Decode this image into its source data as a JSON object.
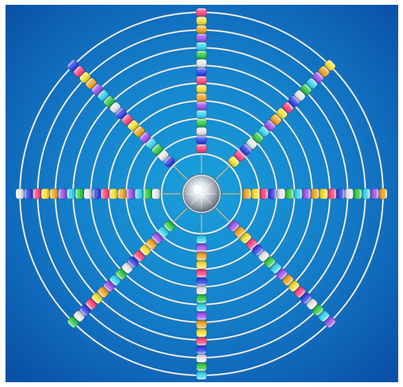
{
  "image": {
    "subject": "",
    "background": {
      "inner_color": "#19a2dc",
      "outer_color": "#0a4fa8"
    },
    "ring_count": 9,
    "spoke_count": 8,
    "ring_color": "#e8eef4",
    "wire_color": "#c9b48a",
    "center_gem_color": "#dfe4ea",
    "bead_palette": [
      "#ff3f7a",
      "#27c93f",
      "#f2a21a",
      "#2a3be8",
      "#2ed3f2",
      "#f5e02a",
      "#e6e6ee",
      "#9a4bf0"
    ]
  }
}
